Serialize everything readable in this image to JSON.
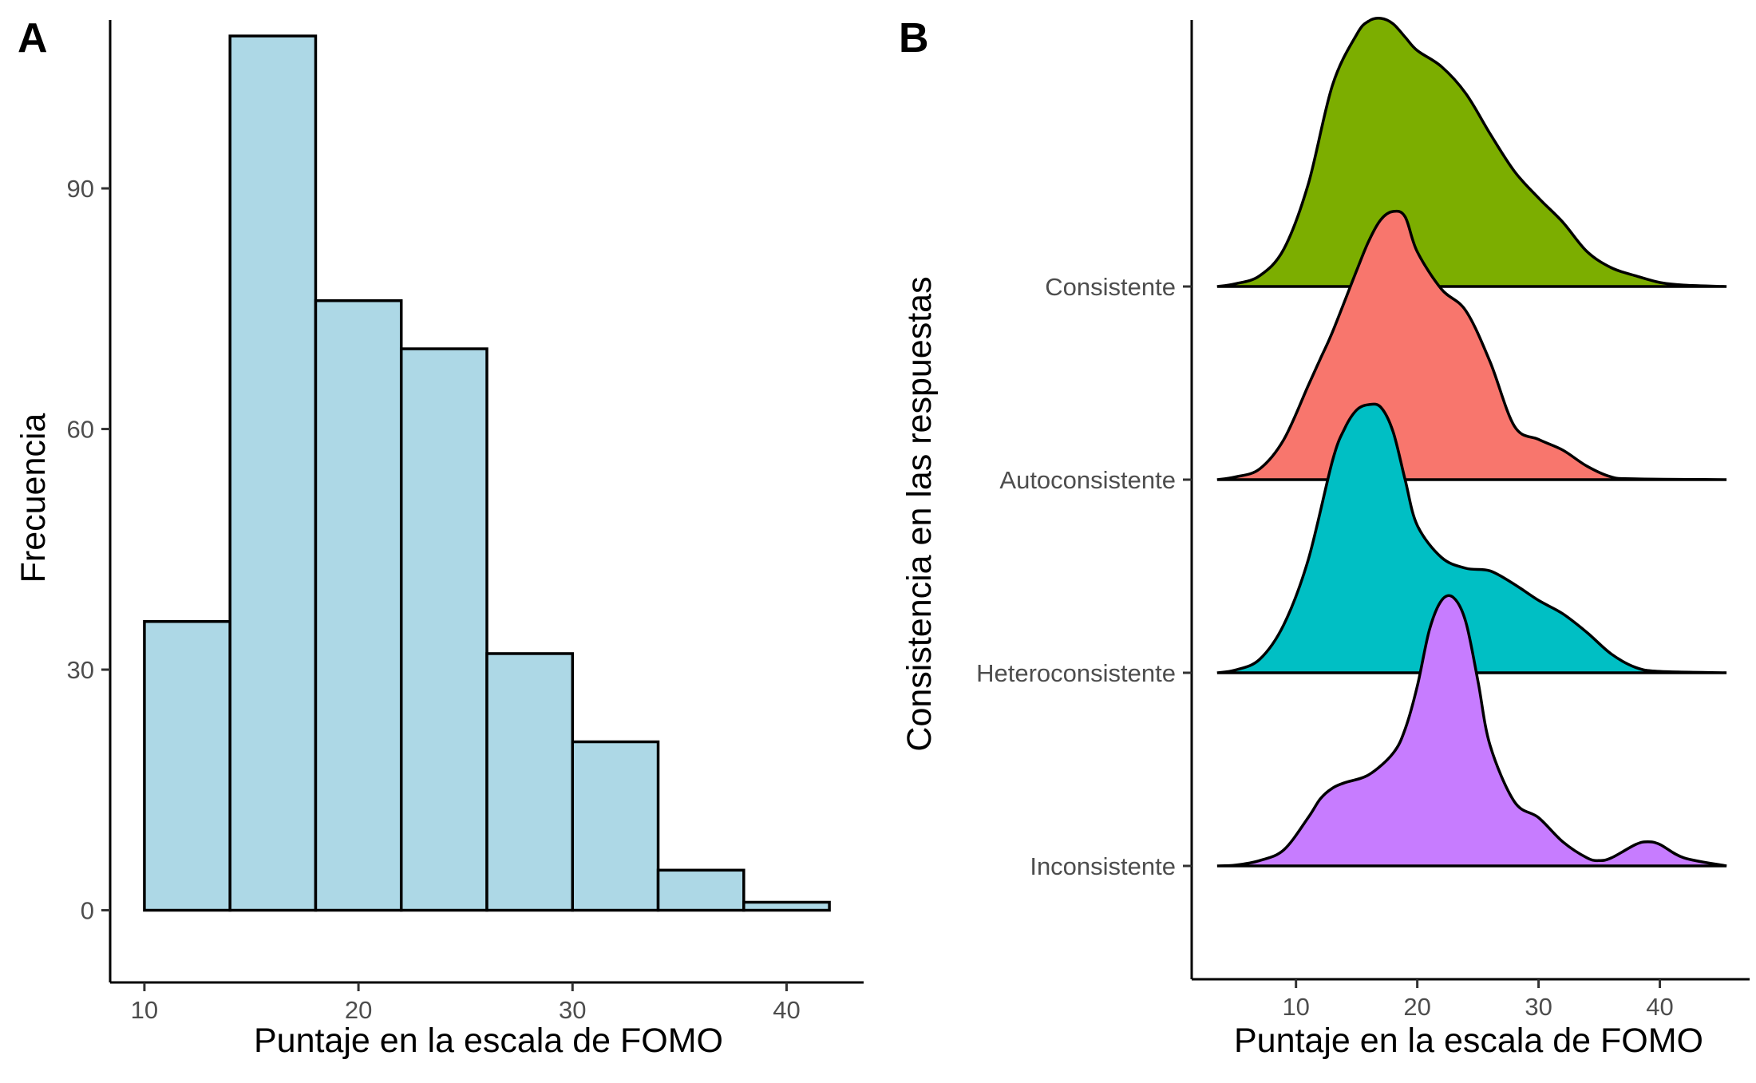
{
  "panels": [
    {
      "tag": "A",
      "chart_data": {
        "type": "bar",
        "title": "",
        "xlabel": "Puntaje en la escala de FOMO",
        "ylabel": "Frecuencia",
        "bins": [
          {
            "from": 10,
            "to": 14,
            "value": 36
          },
          {
            "from": 14,
            "to": 18,
            "value": 109
          },
          {
            "from": 18,
            "to": 22,
            "value": 76
          },
          {
            "from": 22,
            "to": 26,
            "value": 70
          },
          {
            "from": 26,
            "to": 30,
            "value": 32
          },
          {
            "from": 30,
            "to": 34,
            "value": 21
          },
          {
            "from": 34,
            "to": 38,
            "value": 5
          },
          {
            "from": 38,
            "to": 42,
            "value": 1
          }
        ],
        "xlim": [
          8.4,
          43.6
        ],
        "ylim": [
          -9,
          111
        ],
        "xticks": [
          10,
          20,
          30,
          40
        ],
        "yticks": [
          0,
          30,
          60,
          90
        ],
        "bar_color": "#add8e6",
        "grid": false,
        "legend": "none"
      }
    },
    {
      "tag": "B",
      "chart_data": {
        "type": "area",
        "subtype": "ridgeline-density",
        "title": "",
        "xlabel": "Puntaje en la escala de FOMO",
        "ylabel": "Consistencia en las respuestas",
        "xlim": [
          1.4,
          47.4
        ],
        "xticks": [
          10,
          20,
          30,
          40
        ],
        "categories": [
          "Consistente",
          "Autoconsistente",
          "Heteroconsistente",
          "Inconsistente"
        ],
        "series": [
          {
            "name": "Consistente",
            "color": "#7cae00",
            "x": [
              3.5,
              5,
              7,
              9,
              11,
              13,
              15,
              16,
              17,
              18,
              19,
              20,
              22,
              24,
              26,
              28,
              30,
              32,
              34,
              36,
              38,
              40,
              42,
              45.5
            ],
            "density_relative": [
              0,
              0.01,
              0.04,
              0.14,
              0.38,
              0.75,
              0.94,
              0.99,
              1.0,
              0.98,
              0.93,
              0.88,
              0.82,
              0.72,
              0.57,
              0.43,
              0.33,
              0.24,
              0.13,
              0.07,
              0.04,
              0.015,
              0.005,
              0
            ]
          },
          {
            "name": "Autoconsistente",
            "color": "#f8766d",
            "x": [
              3.5,
              5,
              7,
              9,
              11,
              12,
              13,
              15,
              16,
              17,
              18,
              19,
              20,
              22,
              24,
              26,
              28,
              30,
              32,
              34,
              36,
              38,
              45.5
            ],
            "density_relative": [
              0,
              0.01,
              0.04,
              0.15,
              0.35,
              0.45,
              0.55,
              0.78,
              0.89,
              0.97,
              1.0,
              0.98,
              0.85,
              0.71,
              0.63,
              0.44,
              0.2,
              0.15,
              0.11,
              0.05,
              0.01,
              0.003,
              0
            ]
          },
          {
            "name": "Heteroconsistente",
            "color": "#00bfc4",
            "x": [
              3.5,
              5,
              7,
              9,
              11,
              13,
              14,
              15,
              16,
              17,
              18,
              19,
              20,
              22,
              24,
              26,
              28,
              30,
              32,
              34,
              36,
              38,
              40,
              45.5
            ],
            "density_relative": [
              0,
              0.01,
              0.05,
              0.18,
              0.42,
              0.79,
              0.91,
              0.98,
              1.0,
              0.99,
              0.9,
              0.72,
              0.55,
              0.43,
              0.39,
              0.38,
              0.33,
              0.27,
              0.22,
              0.15,
              0.07,
              0.02,
              0.005,
              0
            ]
          },
          {
            "name": "Inconsistente",
            "color": "#c77cff",
            "x": [
              3.5,
              5,
              7,
              9,
              11,
              12,
              13,
              14,
              16,
              18,
              19,
              20,
              21,
              22,
              23,
              24,
              25,
              26,
              28,
              30,
              32,
              34,
              35,
              36,
              38,
              39,
              40,
              42,
              45.5
            ],
            "density_relative": [
              0,
              0.003,
              0.02,
              0.06,
              0.18,
              0.25,
              0.29,
              0.31,
              0.34,
              0.42,
              0.51,
              0.67,
              0.88,
              0.99,
              1.0,
              0.91,
              0.69,
              0.45,
              0.24,
              0.18,
              0.09,
              0.03,
              0.02,
              0.03,
              0.08,
              0.09,
              0.08,
              0.03,
              0
            ]
          }
        ],
        "grid": false,
        "legend": "none"
      }
    }
  ]
}
